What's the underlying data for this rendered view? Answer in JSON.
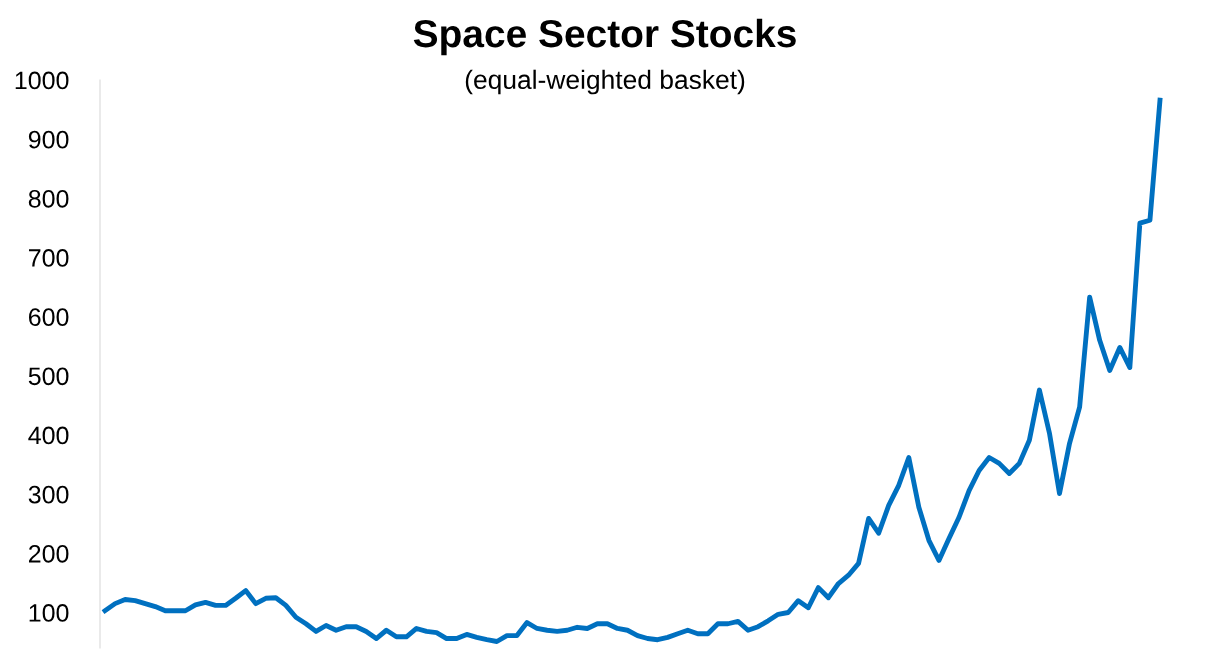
{
  "chart_data": {
    "type": "line",
    "title": "Space Sector Stocks",
    "subtitle": "(equal-weighted basket)",
    "categories": [
      null,
      null,
      null,
      null,
      null,
      null,
      null,
      null,
      null,
      null,
      null,
      null,
      null,
      null,
      null,
      null,
      null,
      null,
      null,
      null,
      null,
      null,
      null,
      null,
      null,
      null,
      null,
      null,
      null,
      null,
      null,
      null,
      null,
      null,
      null,
      null,
      null,
      null,
      null,
      null,
      null,
      null,
      null,
      null,
      null,
      null,
      null,
      null,
      null,
      null,
      null,
      null,
      null,
      null,
      null,
      null,
      null,
      null,
      null,
      null,
      null,
      null,
      null,
      null,
      null,
      null,
      null,
      null,
      null,
      null,
      null,
      null,
      null,
      null,
      null,
      null,
      null,
      null,
      null,
      null,
      null,
      null,
      null,
      null,
      null,
      null,
      null,
      null,
      null,
      null,
      null,
      null,
      null,
      null,
      null,
      null,
      null,
      null,
      null,
      null,
      null,
      null,
      null,
      null,
      null,
      null
    ],
    "series": [
      {
        "color": "#0070c0",
        "values": [
          103,
          115,
          122,
          120,
          115,
          110,
          103,
          103,
          103,
          113,
          117,
          112,
          112,
          124,
          137,
          115,
          124,
          125,
          112,
          92,
          81,
          68,
          78,
          70,
          76,
          76,
          68,
          56,
          70,
          59,
          59,
          73,
          68,
          66,
          56,
          56,
          63,
          58,
          54,
          51,
          61,
          61,
          83,
          73,
          70,
          68,
          70,
          75,
          73,
          81,
          81,
          73,
          70,
          61,
          56,
          54,
          58,
          64,
          70,
          64,
          64,
          81,
          81,
          85,
          70,
          76,
          86,
          97,
          100,
          120,
          108,
          142,
          125,
          149,
          163,
          183,
          259,
          234,
          281,
          315,
          362,
          278,
          222,
          188,
          225,
          261,
          306,
          340,
          362,
          352,
          335,
          352,
          391,
          476,
          403,
          301,
          386,
          447,
          633,
          560,
          509,
          548,
          514,
          758,
          763,
          966
        ]
      }
    ],
    "ylim": [
      40,
      1000
    ],
    "yticks": [
      100,
      200,
      300,
      400,
      500,
      600,
      700,
      800,
      900,
      1000
    ],
    "tick_labels": "y",
    "grid": false,
    "legend": false,
    "line_style": "solid"
  }
}
